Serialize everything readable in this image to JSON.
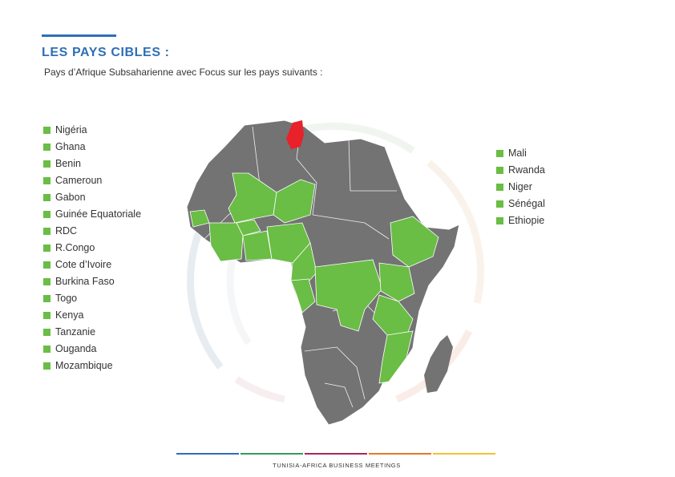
{
  "header": {
    "title": "LES PAYS CIBLES :",
    "subtitle": "Pays d’Afrique Subsaharienne avec Focus sur les pays suivants :"
  },
  "countries_left": [
    "Nigéria",
    "Ghana",
    "Benin",
    "Cameroun",
    "Gabon",
    "Guinée Equatoriale",
    "RDC",
    "R.Congo",
    "Cote d’Ivoire",
    "Burkina Faso",
    "Togo",
    "Kenya",
    "Tanzanie",
    "Ouganda",
    "Mozambique"
  ],
  "countries_right": [
    "Mali",
    "Rwanda",
    "Niger",
    "Sénégal",
    "Ethiopie"
  ],
  "colors": {
    "accent_blue": "#2f6fb6",
    "target_green": "#6abd45",
    "other_gray": "#737373",
    "tunisia_red": "#e8212a",
    "footer_bars": [
      "#2f6fb6",
      "#3a9a5b",
      "#a5285e",
      "#e07b2c",
      "#f1c232"
    ]
  },
  "footer": {
    "text": "TUNISIA-AFRICA BUSINESS MEETINGS"
  }
}
